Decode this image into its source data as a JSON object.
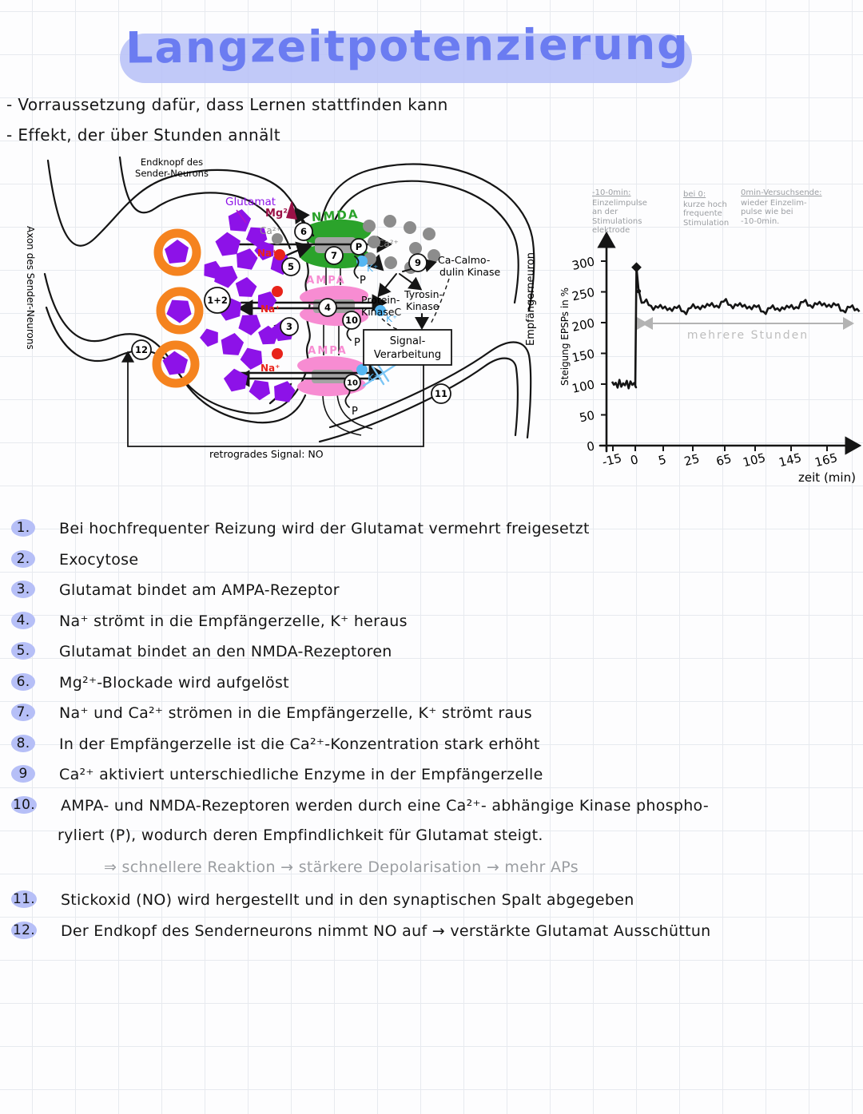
{
  "colors": {
    "title-blue": "#6b7cf1",
    "highlight-lavender": "#b6bff7",
    "glutamate-purple": "#8d12e8",
    "vesicle-orange": "#f5831f",
    "nmda-green": "#2ba32b",
    "ampa-pink": "#f78cd2",
    "channel-gray": "#a3a3a3",
    "na-red": "#e8231a",
    "ca-gray": "#8c8c8c",
    "k-blue": "#55b6f2",
    "mg-maroon": "#9c1147",
    "ink-black": "#151515",
    "pencil-gray": "#9b9ea2"
  },
  "title": {
    "text": "Langzeitpotenzierung"
  },
  "bullets": [
    "- Vorraussetzung dafür, dass Lernen stattfinden kann",
    "- Effekt, der über Stunden annält"
  ],
  "diagram": {
    "endknopf_label_1": "Endknopf des",
    "endknopf_label_2": "Sender-Neurons",
    "axon_label": "Axon des Sender-Neurons",
    "empfaenger_label": "Empfängerneuron",
    "glutamat_label": "Glutamat",
    "mg_label": "Mg²⁺",
    "ca_label": "Ca²⁺",
    "na_label": "Na⁺",
    "k_label": "K⁺",
    "nmda_label": "NMDA",
    "ampa_label": "AMPA",
    "ca_calmodulin_1": "Ca-Calmo-",
    "ca_calmodulin_2": "dulin Kinase",
    "protein_kinase_1": "Protein-",
    "protein_kinase_2": "KinaseC",
    "tyrosin_kinase_1": "Tyrosin-",
    "tyrosin_kinase_2": "Kinase",
    "signal_box_1": "Signal-",
    "signal_box_2": "Verarbeitung",
    "retrograde_label": "retrogrades Signal: NO",
    "phosphate_label": "P",
    "step_markers": {
      "s1_2": "1+2",
      "s3": "3",
      "s4": "4",
      "s5": "5",
      "s6": "6",
      "s7": "7",
      "s9": "9",
      "s10": "10",
      "s10b": "10",
      "s11": "11",
      "s12": "12",
      "sp": "P"
    }
  },
  "chart_data": {
    "type": "line",
    "title": "",
    "xlabel": "zeit (min)",
    "ylabel": "Steigung EPSPs in %",
    "x_ticks": [
      -15,
      0,
      5,
      25,
      65,
      105,
      145,
      165
    ],
    "y_ticks": [
      0,
      50,
      100,
      150,
      200,
      250,
      300
    ],
    "ylim": [
      0,
      320
    ],
    "grid": false,
    "span_label": "mehrere Stunden",
    "series": [
      {
        "name": "EPSP-Steigung in %",
        "baseline_value": 100,
        "peak_value": 290,
        "plateau_value": 226,
        "noise_amplitude": 10,
        "description": "Einzelimpulse von -15 bis 0 min bei ~100%; kurze hochfrequente Stimulation bei 0 min erzeugt Spitze ~290%; danach Plateau ~215-240% über mehrere Stunden"
      }
    ],
    "annotations": [
      {
        "heading": "-10-0min:",
        "lines": [
          "Einzelimpulse",
          "an der",
          "Stimulations",
          "elektrode"
        ]
      },
      {
        "heading": "bei 0:",
        "lines": [
          "kurze hoch",
          "frequente",
          "Stimulation"
        ]
      },
      {
        "heading": "0min-Versuchsende:",
        "lines": [
          "wieder Einzelim-",
          "pulse wie bei",
          "-10-0min."
        ]
      }
    ]
  },
  "steps": {
    "items": [
      {
        "num": "1.",
        "text": "Bei hochfrequenter Reizung wird der Glutamat vermehrt freigesetzt"
      },
      {
        "num": "2.",
        "text": "Exocytose"
      },
      {
        "num": "3.",
        "text": "Glutamat bindet am AMPA-Rezeptor"
      },
      {
        "num": "4.",
        "text": "Na⁺ strömt in die Empfängerzelle, K⁺ heraus"
      },
      {
        "num": "5.",
        "text": "Glutamat bindet an den NMDA-Rezeptoren"
      },
      {
        "num": "6.",
        "text": "Mg²⁺-Blockade wird aufgelöst"
      },
      {
        "num": "7.",
        "text": "Na⁺ und Ca²⁺ strömen in die Empfängerzelle, K⁺ strömt raus"
      },
      {
        "num": "8.",
        "text": "In der Empfängerzelle ist die Ca²⁺-Konzentration stark erhöht"
      },
      {
        "num": "9",
        "text": "Ca²⁺ aktiviert unterschiedliche Enzyme in der Empfängerzelle"
      },
      {
        "num": "10.",
        "text": "AMPA- und NMDA-Rezeptoren werden durch eine Ca²⁺- abhängige Kinase phospho-",
        "text2": "ryliert (P), wodurch deren Empfindlichkeit für Glutamat steigt."
      },
      {
        "num": "11.",
        "text": "Stickoxid (NO) wird hergestellt und in den synaptischen Spalt abgegeben"
      },
      {
        "num": "12.",
        "text": "Der Endkopf des Senderneurons nimmt NO auf → verstärkte Glutamat Ausschüttun"
      }
    ],
    "note": "⇒ schnellere Reaktion → stärkere Depolarisation → mehr APs"
  }
}
